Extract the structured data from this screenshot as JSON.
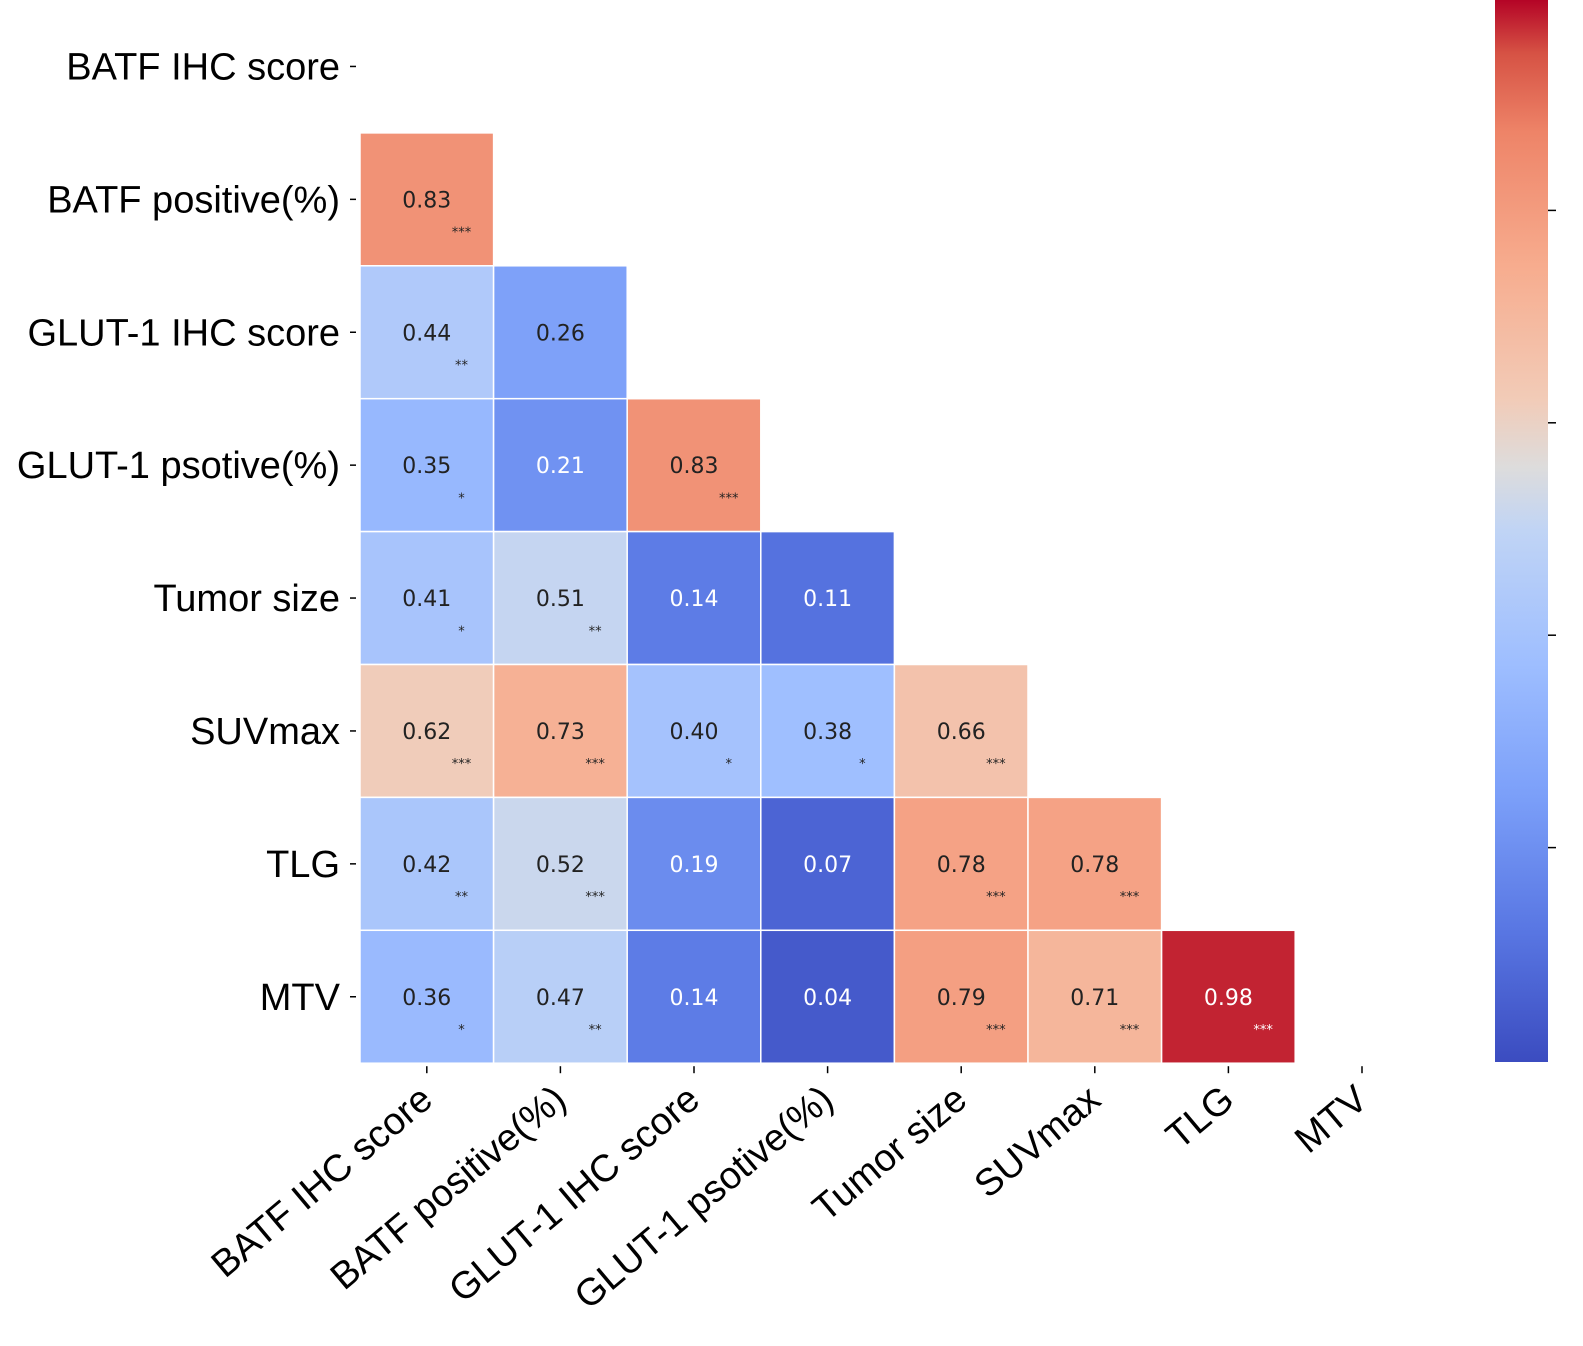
{
  "chart_data": {
    "type": "heatmap",
    "title": "",
    "variables": [
      "BATF IHC score",
      "BATF positive(%)",
      "GLUT-1 IHC score",
      "GLUT-1 psotive(%)",
      "Tumor size",
      "SUVmax",
      "TLG",
      "MTV"
    ],
    "rows": [
      "BATF IHC score",
      "BATF positive(%)",
      "GLUT-1 IHC score",
      "GLUT-1 psotive(%)",
      "Tumor size",
      "SUVmax",
      "TLG",
      "MTV"
    ],
    "columns": [
      "BATF IHC score",
      "BATF positive(%)",
      "GLUT-1 IHC score",
      "GLUT-1 psotive(%)",
      "Tumor size",
      "SUVmax",
      "TLG",
      "MTV"
    ],
    "lower_triangle_only": true,
    "values": [
      [],
      [
        0.83
      ],
      [
        0.44,
        0.26
      ],
      [
        0.35,
        0.21,
        0.83
      ],
      [
        0.41,
        0.51,
        0.14,
        0.11
      ],
      [
        0.62,
        0.73,
        0.4,
        0.38,
        0.66
      ],
      [
        0.42,
        0.52,
        0.19,
        0.07,
        0.78,
        0.78
      ],
      [
        0.36,
        0.47,
        0.14,
        0.04,
        0.79,
        0.71,
        0.98
      ]
    ],
    "value_labels": [
      [],
      [
        "0.83"
      ],
      [
        "0.44",
        "0.26"
      ],
      [
        "0.35",
        "0.21",
        "0.83"
      ],
      [
        "0.41",
        "0.51",
        "0.14",
        "0.11"
      ],
      [
        "0.62",
        "0.73",
        "0.40",
        "0.38",
        "0.66"
      ],
      [
        "0.42",
        "0.52",
        "0.19",
        "0.07",
        "0.78",
        "0.78"
      ],
      [
        "0.36",
        "0.47",
        "0.14",
        "0.04",
        "0.79",
        "0.71",
        "0.98"
      ]
    ],
    "significance": [
      [],
      [
        "***"
      ],
      [
        "**",
        ""
      ],
      [
        "*",
        "",
        "***"
      ],
      [
        "*",
        "**",
        "",
        ""
      ],
      [
        "***",
        "***",
        "*",
        "*",
        "***"
      ],
      [
        "**",
        "***",
        "",
        "",
        "***",
        "***"
      ],
      [
        "*",
        "**",
        "",
        "",
        "***",
        "***",
        "***"
      ]
    ],
    "colormap": "coolwarm",
    "color_range": [
      0.0,
      1.0
    ],
    "colorbar": {
      "position": "right",
      "tick_labels_shown": false
    },
    "colors": {
      "low": "#3b4cc0",
      "mid": "#dddddd",
      "high": "#b40426",
      "cell_border": "#ffffff",
      "text_light": "#ffffff",
      "text_dark": "#222222"
    }
  }
}
